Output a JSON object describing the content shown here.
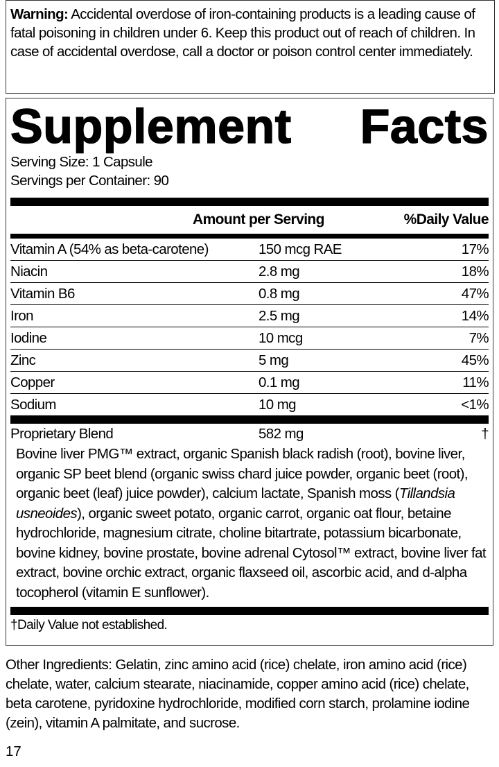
{
  "warning": {
    "label": "Warning:",
    "text": " Accidental overdose of iron-containing products is a leading cause of fatal poisoning in children under 6. Keep this product out of reach of children. In case of accidental overdose, call a doctor or poison control center immediately."
  },
  "facts": {
    "title_word1": "Supplement",
    "title_word2": "Facts",
    "serving_size": "Serving Size: 1 Capsule",
    "servings_per_container": "Servings per Container: 90",
    "header": {
      "amount": "Amount per Serving",
      "dv": "%Daily Value"
    },
    "rows": [
      {
        "name": "Vitamin A (54% as beta-carotene)",
        "amount": "150 mcg RAE",
        "dv": "17%"
      },
      {
        "name": "Niacin",
        "amount": "2.8 mg",
        "dv": "18%"
      },
      {
        "name": "Vitamin B6",
        "amount": "0.8 mg",
        "dv": "47%"
      },
      {
        "name": "Iron",
        "amount": "2.5 mg",
        "dv": "14%"
      },
      {
        "name": "Iodine",
        "amount": "10 mcg",
        "dv": "7%"
      },
      {
        "name": "Zinc",
        "amount": "5 mg",
        "dv": "45%"
      },
      {
        "name": "Copper",
        "amount": "0.1 mg",
        "dv": "11%"
      },
      {
        "name": "Sodium",
        "amount": "10 mg",
        "dv": "<1%"
      }
    ],
    "blend": {
      "name": "Proprietary Blend",
      "amount": "582 mg",
      "dv": "†",
      "text_before": "Bovine liver PMG™ extract, organic Spanish black radish (root), bovine liver, organic SP beet blend (organic swiss chard juice powder, organic beet (root), organic beet (leaf) juice powder), calcium lactate, Spanish moss (",
      "text_italic": "Tillandsia usneoides",
      "text_after": "), organic sweet potato, organic carrot, organic oat flour, betaine hydrochloride, magnesium citrate, choline bitartrate, potassium bicarbonate, bovine kidney, bovine prostate, bovine adrenal Cytosol™ extract, bovine liver fat extract, bovine orchic extract, organic flaxseed oil, ascorbic acid, and d-alpha tocopherol (vitamin E sunflower)."
    },
    "footnote": "†Daily Value not established."
  },
  "other_ingredients": "Other Ingredients: Gelatin, zinc amino acid (rice) chelate, iron amino acid (rice) chelate, water, calcium stearate, niacinamide, copper amino acid (rice) chelate, beta carotene, pyridoxine hydrochloride, modified corn starch, prolamine iodine (zein), vitamin A palmitate, and sucrose.",
  "page_number": "17"
}
